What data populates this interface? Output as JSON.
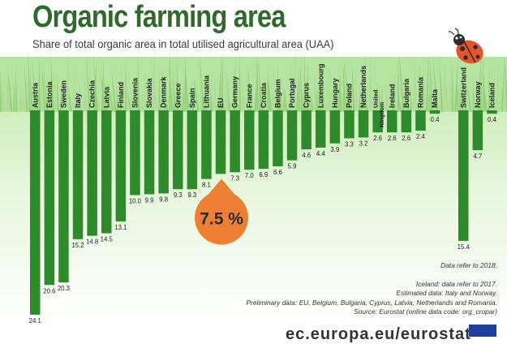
{
  "title": "Organic farming area",
  "subtitle": "Share of total organic area in total utilised agricultural area (UAA)",
  "highlight_label": "7.5 %",
  "notes": {
    "year": "Data refer to 2018.",
    "iceland": "Iceland: data refer to 2017.",
    "estimated": "Estimated data:  Italy and Norway.",
    "preliminary": "Preliminary data: EU, Belgium, Bulgaria, Cyprus, Latvia, Netherlands and Romania.",
    "source": "Source: Eurostat (online data code: org_cropar)"
  },
  "footer_text": "ec.europa.eu/eurostat",
  "colors": {
    "bar": "#2f8a2c",
    "title": "#2e6a2a",
    "highlight": "#ef7f32",
    "grass_light": "#d6f0c8",
    "grass_dark": "#8fce76",
    "ladybug": "#e8542a"
  },
  "chart_data": {
    "type": "bar",
    "orientation": "downward",
    "categories": [
      "Austria",
      "Estonia",
      "Sweden",
      "Italy",
      "Czechia",
      "Latvia",
      "Finland",
      "Slovenia",
      "Slovakia",
      "Denmark",
      "Greece",
      "Spain",
      "Lithuania",
      "EU",
      "Germany",
      "France",
      "Croatia",
      "Belgium",
      "Portugal",
      "Cyprus",
      "Luxembourg",
      "Hungary",
      "Poland",
      "Netherlands",
      "United Kingdom",
      "Ireland",
      "Bulgaria",
      "Romania",
      "Malta",
      "Switzerland",
      "Norway",
      "Iceland"
    ],
    "values": [
      24.1,
      20.6,
      20.3,
      15.2,
      14.8,
      14.5,
      13.1,
      10.0,
      9.9,
      9.8,
      9.3,
      9.3,
      8.1,
      7.5,
      7.3,
      7.0,
      6.9,
      6.6,
      5.9,
      4.6,
      4.4,
      3.9,
      3.3,
      3.2,
      2.6,
      2.6,
      2.6,
      2.4,
      0.4,
      15.4,
      4.7,
      0.4
    ],
    "value_labels": [
      "24.1",
      "20.6",
      "20.3",
      "15.2",
      "14.8",
      "14.5",
      "13.1",
      "10.0",
      "9.9",
      "9.8",
      "9.3",
      "9.3",
      "8.1",
      "",
      "7.3",
      "7.0",
      "6.9",
      "6.6",
      "5.9",
      "4.6",
      "4.4",
      "3.9",
      "3.3",
      "3.2",
      "2.6",
      "2.6",
      "2.6",
      "2.4",
      "0.4",
      "15.4",
      "4.7",
      "0.4"
    ],
    "highlight_category": "EU",
    "gap_before": "Switzerland",
    "ylabel": "",
    "ylim": [
      0,
      25
    ],
    "grid": false,
    "legend": "none"
  }
}
